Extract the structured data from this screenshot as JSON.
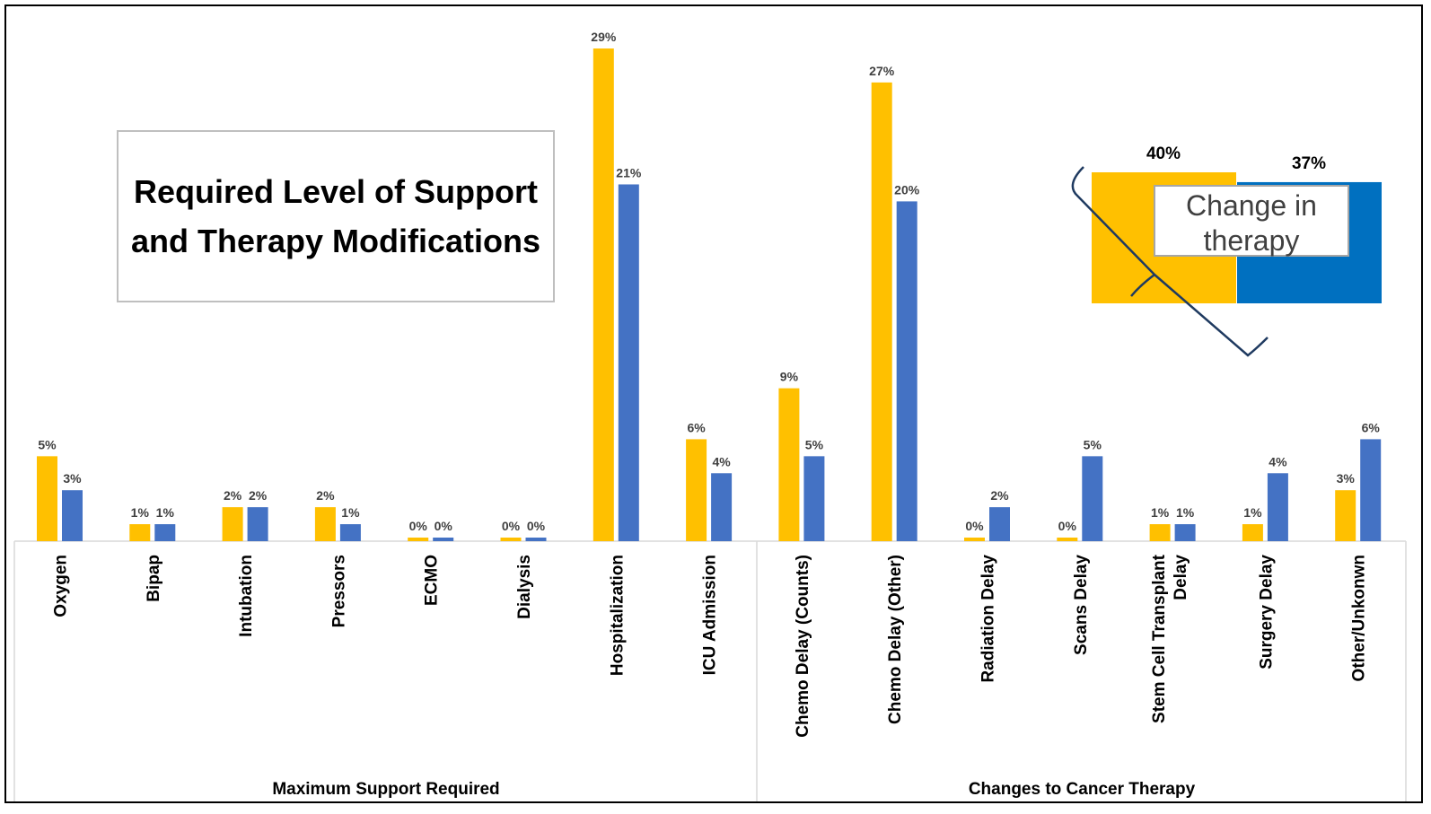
{
  "title": "Required Level of Support and Therapy Modifications",
  "colors": {
    "series_a": "#FFC000",
    "series_b": "#4472C4",
    "inset_b": "#0070C0",
    "text": "#000000"
  },
  "chart_data": [
    {
      "type": "bar",
      "title": "Required Level of Support and Therapy Modifications",
      "groups": [
        {
          "label": "Maximum Support Required",
          "categories": [
            "Oxygen",
            "Bipap",
            "Intubation",
            "Pressors",
            "ECMO",
            "Dialysis",
            "Hospitalization",
            "ICU Admission"
          ]
        },
        {
          "label": "Changes to Cancer Therapy",
          "categories": [
            "Chemo Delay (Counts)",
            "Chemo Delay (Other)",
            "Radiation Delay",
            "Scans Delay",
            "Stem Cell Transplant Delay",
            "Surgery Delay",
            "Other/Unkonwn"
          ]
        }
      ],
      "categories": [
        "Oxygen",
        "Bipap",
        "Intubation",
        "Pressors",
        "ECMO",
        "Dialysis",
        "Hospitalization",
        "ICU Admission",
        "Chemo Delay (Counts)",
        "Chemo Delay (Other)",
        "Radiation Delay",
        "Scans Delay",
        "Stem Cell Transplant Delay",
        "Surgery Delay",
        "Other/Unkonwn"
      ],
      "series": [
        {
          "values": [
            5,
            1,
            2,
            2,
            0,
            0,
            29,
            6,
            9,
            27,
            0,
            0,
            1,
            1,
            3
          ],
          "color": "#FFC000"
        },
        {
          "values": [
            3,
            1,
            2,
            1,
            0,
            0,
            21,
            4,
            5,
            20,
            2,
            5,
            1,
            4,
            6
          ],
          "color": "#4472C4"
        }
      ],
      "value_labels": [
        [
          "5%",
          "1%",
          "2%",
          "2%",
          "0%",
          "0%",
          "29%",
          "6%",
          "9%",
          "27%",
          "0%",
          "0%",
          "1%",
          "1%",
          "3%"
        ],
        [
          "3%",
          "1%",
          "2%",
          "1%",
          "0%",
          "0%",
          "21%",
          "4%",
          "5%",
          "20%",
          "2%",
          "5%",
          "1%",
          "4%",
          "6%"
        ]
      ],
      "value_unit": "%",
      "ylim": [
        0,
        30
      ],
      "grid": false,
      "legend": "none"
    },
    {
      "type": "bar",
      "title": "",
      "label": "Change in therapy",
      "values": [
        40,
        37
      ],
      "value_labels": [
        "40%",
        "37%"
      ],
      "colors": [
        "#FFC000",
        "#0070C0"
      ],
      "ylim": [
        0,
        40
      ]
    }
  ]
}
